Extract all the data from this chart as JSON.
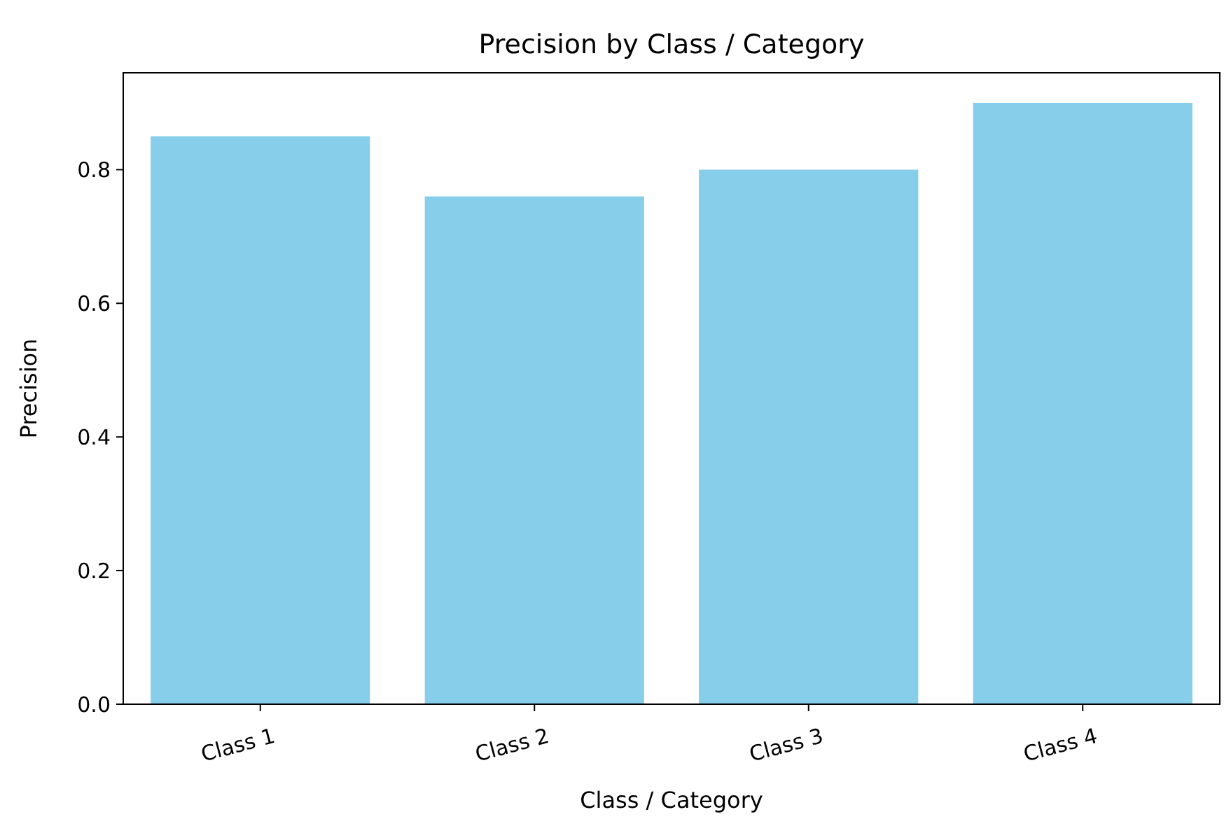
{
  "chart_data": {
    "type": "bar",
    "title": "Precision by Class / Category",
    "xlabel": "Class / Category",
    "ylabel": "Precision",
    "categories": [
      "Class 1",
      "Class 2",
      "Class 3",
      "Class 4"
    ],
    "values": [
      0.85,
      0.76,
      0.8,
      0.9
    ],
    "color": "#87ceeb",
    "ylim": [
      0,
      0.945
    ],
    "yticks": [
      {
        "value": 0,
        "label": "0.0"
      },
      {
        "value": 0.2,
        "label": "0.2"
      },
      {
        "value": 0.4,
        "label": "0.4"
      },
      {
        "value": 0.6,
        "label": "0.6"
      },
      {
        "value": 0.8,
        "label": "0.8"
      }
    ],
    "grid": false
  }
}
